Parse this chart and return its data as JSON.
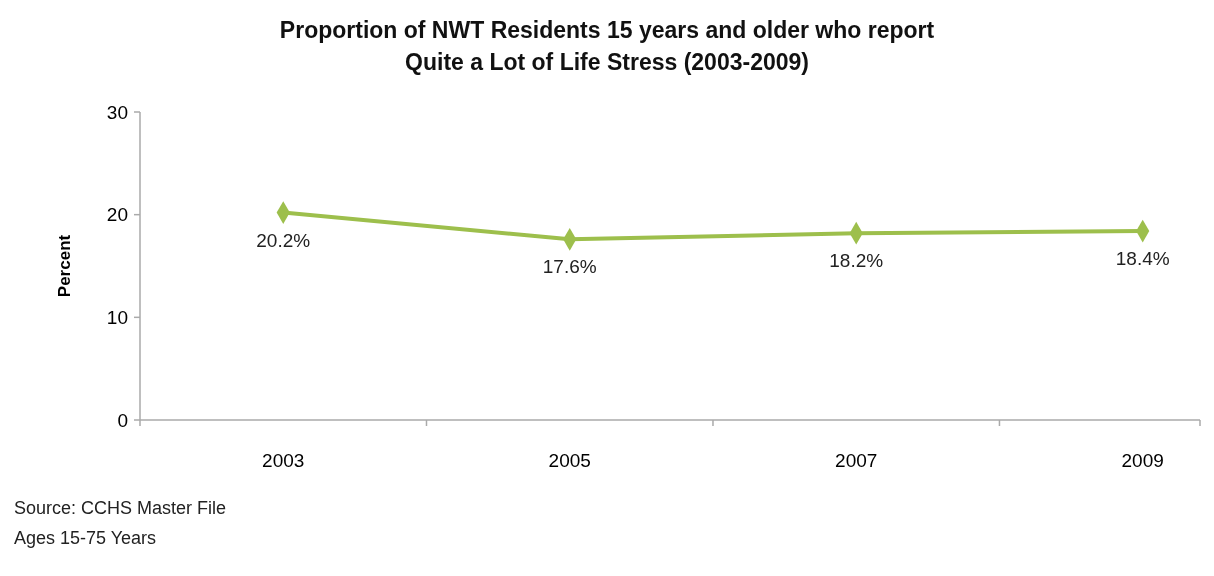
{
  "chart_data": {
    "type": "line",
    "title": "Proportion of NWT Residents 15 years and older who report\nQuite a Lot of Life Stress (2003-2009)",
    "ylabel": "Percent",
    "categories": [
      "2003",
      "2005",
      "2007",
      "2009"
    ],
    "series": [
      {
        "color": "#9dbf4c",
        "values": [
          20.2,
          17.6,
          18.2,
          18.4
        ],
        "value_labels": [
          "20.2%",
          "17.6%",
          "18.2%",
          "18.4%"
        ]
      }
    ],
    "ylim": [
      0,
      30
    ],
    "yticks": [
      0,
      10,
      20,
      30
    ],
    "marker": "diamond",
    "line_style": "solid",
    "grid": false,
    "annotations": [
      "Source: CCHS Master File",
      "Ages 15-75 Years"
    ]
  }
}
